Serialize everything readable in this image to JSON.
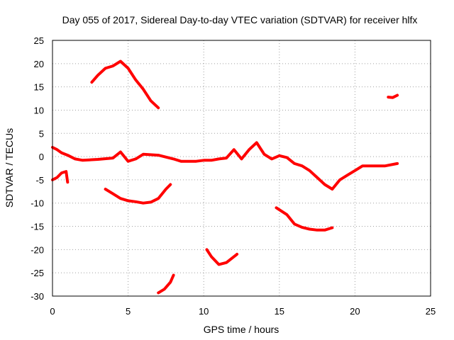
{
  "chart_data": {
    "type": "line",
    "title": "Day 055 of 2017, Sidereal Day-to-day VTEC variation (SDTVAR) for receiver hlfx",
    "xlabel": "GPS time / hours",
    "ylabel": "SDTVAR / TECUs",
    "xlim": [
      0,
      25
    ],
    "ylim": [
      -30,
      25
    ],
    "xticks": [
      0,
      5,
      10,
      15,
      20,
      25
    ],
    "yticks": [
      -30,
      -25,
      -20,
      -15,
      -10,
      -5,
      0,
      5,
      10,
      15,
      20,
      25
    ],
    "grid": true,
    "color": "#ff0000",
    "series": [
      {
        "name": "main-band",
        "points": [
          [
            0,
            2
          ],
          [
            0.3,
            1.5
          ],
          [
            0.6,
            0.8
          ],
          [
            1,
            0.3
          ],
          [
            1.5,
            -0.5
          ],
          [
            2,
            -0.8
          ],
          [
            3,
            -0.6
          ],
          [
            4,
            -0.3
          ],
          [
            4.5,
            1
          ],
          [
            5,
            -1
          ],
          [
            5.5,
            -0.5
          ],
          [
            6,
            0.5
          ],
          [
            7,
            0.3
          ],
          [
            8,
            -0.5
          ],
          [
            8.5,
            -1
          ],
          [
            9,
            -1
          ],
          [
            9.5,
            -1
          ],
          [
            10,
            -0.8
          ],
          [
            10.5,
            -0.8
          ],
          [
            11,
            -0.5
          ],
          [
            11.5,
            -0.3
          ],
          [
            12,
            1.5
          ],
          [
            12.5,
            -0.5
          ],
          [
            13,
            1.5
          ],
          [
            13.5,
            3
          ],
          [
            14,
            0.5
          ],
          [
            14.5,
            -0.5
          ],
          [
            15,
            0.2
          ],
          [
            15.5,
            -0.2
          ],
          [
            16,
            -1.5
          ],
          [
            16.5,
            -2
          ],
          [
            17,
            -3
          ],
          [
            17.5,
            -4.5
          ],
          [
            18,
            -6
          ],
          [
            18.5,
            -7
          ],
          [
            19,
            -5
          ],
          [
            19.5,
            -4
          ],
          [
            20,
            -3
          ],
          [
            20.5,
            -2
          ],
          [
            21,
            -2
          ],
          [
            22,
            -2
          ],
          [
            22.8,
            -1.5
          ]
        ]
      },
      {
        "name": "early-low",
        "points": [
          [
            0,
            -5
          ],
          [
            0.3,
            -4.5
          ],
          [
            0.6,
            -3.5
          ],
          [
            0.9,
            -3.2
          ],
          [
            1,
            -5.5
          ]
        ]
      },
      {
        "name": "arc-high",
        "points": [
          [
            2.6,
            16
          ],
          [
            3,
            17.5
          ],
          [
            3.5,
            19
          ],
          [
            4,
            19.5
          ],
          [
            4.5,
            20.5
          ],
          [
            5,
            19
          ],
          [
            5.5,
            16.5
          ],
          [
            6,
            14.5
          ],
          [
            6.5,
            12
          ],
          [
            7,
            10.5
          ]
        ]
      },
      {
        "name": "arc-mid",
        "points": [
          [
            3.5,
            -7
          ],
          [
            4,
            -8
          ],
          [
            4.5,
            -9
          ],
          [
            5,
            -9.5
          ],
          [
            5.5,
            -9.7
          ],
          [
            6,
            -10
          ],
          [
            6.5,
            -9.8
          ],
          [
            7,
            -9
          ],
          [
            7.5,
            -7
          ],
          [
            7.8,
            -6
          ]
        ]
      },
      {
        "name": "low-7h",
        "points": [
          [
            7,
            -29.3
          ],
          [
            7.4,
            -28.5
          ],
          [
            7.8,
            -27
          ],
          [
            8,
            -25.5
          ]
        ]
      },
      {
        "name": "low-10h",
        "points": [
          [
            10.2,
            -20
          ],
          [
            10.5,
            -21.5
          ],
          [
            11,
            -23.2
          ],
          [
            11.5,
            -22.8
          ],
          [
            12.2,
            -21
          ]
        ]
      },
      {
        "name": "mid-15h",
        "points": [
          [
            14.8,
            -11
          ],
          [
            15.5,
            -12.5
          ],
          [
            16,
            -14.5
          ],
          [
            16.5,
            -15.2
          ],
          [
            17,
            -15.6
          ],
          [
            17.5,
            -15.8
          ],
          [
            18,
            -15.8
          ],
          [
            18.5,
            -15.3
          ]
        ]
      },
      {
        "name": "high-22h",
        "points": [
          [
            22.2,
            12.8
          ],
          [
            22.5,
            12.7
          ],
          [
            22.8,
            13.2
          ]
        ]
      }
    ]
  }
}
